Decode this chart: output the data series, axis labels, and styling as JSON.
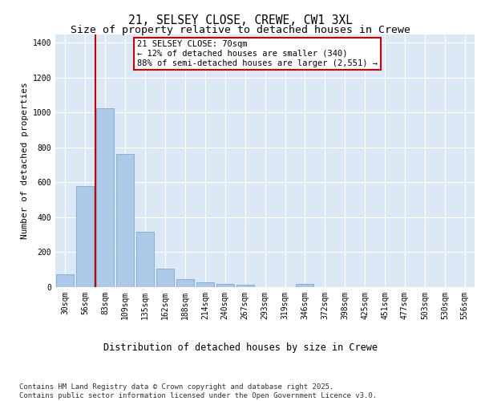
{
  "title": "21, SELSEY CLOSE, CREWE, CW1 3XL",
  "subtitle": "Size of property relative to detached houses in Crewe",
  "xlabel": "Distribution of detached houses by size in Crewe",
  "ylabel": "Number of detached properties",
  "bin_labels": [
    "30sqm",
    "56sqm",
    "83sqm",
    "109sqm",
    "135sqm",
    "162sqm",
    "188sqm",
    "214sqm",
    "240sqm",
    "267sqm",
    "293sqm",
    "319sqm",
    "346sqm",
    "372sqm",
    "398sqm",
    "425sqm",
    "451sqm",
    "477sqm",
    "503sqm",
    "530sqm",
    "556sqm"
  ],
  "bar_values": [
    70,
    580,
    1025,
    760,
    315,
    105,
    42,
    25,
    15,
    10,
    0,
    0,
    15,
    0,
    0,
    0,
    0,
    0,
    0,
    0,
    0
  ],
  "bar_color": "#aec9e8",
  "bar_edgecolor": "#7aaad0",
  "bar_linewidth": 0.6,
  "vline_x": 1.5,
  "vline_color": "#cc0000",
  "annotation_text": "21 SELSEY CLOSE: 70sqm\n← 12% of detached houses are smaller (340)\n88% of semi-detached houses are larger (2,551) →",
  "annotation_boxcolor": "white",
  "annotation_edgecolor": "#cc0000",
  "ylim": [
    0,
    1450
  ],
  "yticks": [
    0,
    200,
    400,
    600,
    800,
    1000,
    1200,
    1400
  ],
  "bg_color": "#dce8f5",
  "title_fontsize": 10.5,
  "subtitle_fontsize": 9.5,
  "axis_label_fontsize": 8,
  "tick_fontsize": 7,
  "footer_text": "Contains HM Land Registry data © Crown copyright and database right 2025.\nContains public sector information licensed under the Open Government Licence v3.0.",
  "footer_fontsize": 6.5
}
